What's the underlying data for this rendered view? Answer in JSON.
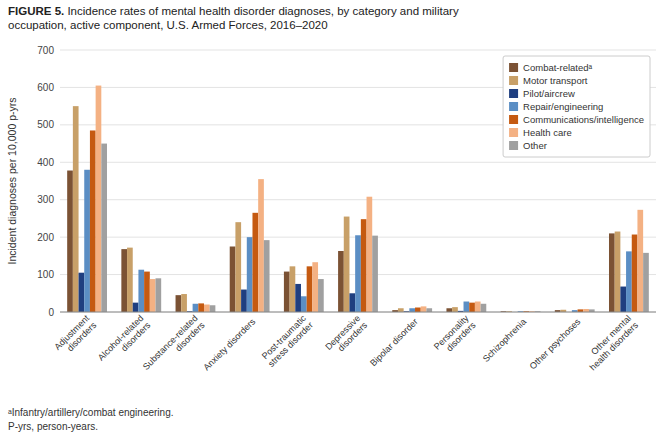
{
  "chart_data": {
    "type": "bar",
    "title": "FIGURE 5.",
    "subtitle": " Incidence rates of mental health disorder diagnoses, by category and military\noccupation, active component, U.S. Armed Forces, 2016–2020",
    "y_label": "Incident diagnoses per 10,000 p-yrs",
    "annotations": [
      "ᵃInfantry/artillery/combat engineering.",
      "P-yrs, person-years."
    ],
    "categories": [
      "Adjustment\ndisorders",
      "Alcohol-related\ndisorders",
      "Substance-related\ndisorders",
      "Anxiety disorders",
      "Post-traumatic\nstress disorder",
      "Depressive\ndisorders",
      "Bipolar disorder",
      "Personality\ndisorders",
      "Schizophrenia",
      "Other psychoses",
      "Other mental\nhealth disorders"
    ],
    "series": [
      {
        "name": "Combat-relatedᵃ",
        "color": "#7B5234",
        "values": [
          378,
          168,
          45,
          175,
          108,
          163,
          5,
          10,
          2,
          5,
          210
        ]
      },
      {
        "name": "Motor transport",
        "color": "#C8A068",
        "values": [
          550,
          172,
          48,
          240,
          122,
          255,
          10,
          13,
          2,
          6,
          215
        ]
      },
      {
        "name": "Pilot/aircrew",
        "color": "#1F3F80",
        "values": [
          105,
          25,
          2,
          60,
          75,
          50,
          2,
          3,
          0,
          0,
          68
        ]
      },
      {
        "name": "Repair/engineering",
        "color": "#5B8EC4",
        "values": [
          380,
          113,
          22,
          200,
          42,
          205,
          10,
          28,
          2,
          5,
          162
        ]
      },
      {
        "name": "Communications/intelligence",
        "color": "#C55A11",
        "values": [
          485,
          108,
          23,
          265,
          122,
          248,
          12,
          25,
          2,
          7,
          207
        ]
      },
      {
        "name": "Health care",
        "color": "#F4B183",
        "values": [
          605,
          88,
          20,
          355,
          133,
          308,
          15,
          28,
          2,
          8,
          273
        ]
      },
      {
        "name": "Other",
        "color": "#A0A0A0",
        "values": [
          450,
          90,
          18,
          192,
          88,
          204,
          10,
          22,
          2,
          7,
          158
        ]
      }
    ],
    "ylim": [
      0,
      700
    ],
    "yticks": [
      0,
      100,
      200,
      300,
      400,
      500,
      600,
      700
    ],
    "grid": true,
    "legend": "upper right"
  }
}
